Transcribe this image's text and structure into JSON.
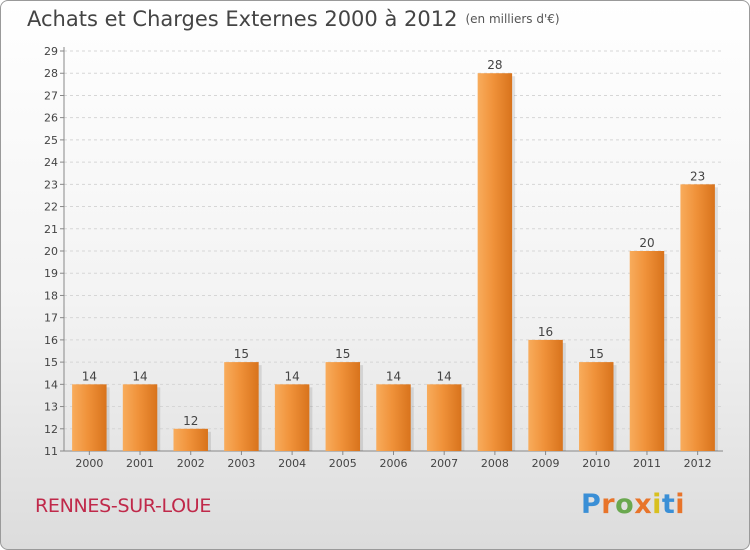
{
  "header": {
    "title": "Achats et Charges Externes 2000 à 2012",
    "unit": "(en milliers d'€)"
  },
  "footer": {
    "commune": "RENNES-SUR-LOUE",
    "logo_text": "Proxiti"
  },
  "colors": {
    "bar": "#f0923a",
    "bar_light": "#f8ac5c",
    "bar_dark": "#d8731c",
    "logo_letters": [
      "#3a8fd6",
      "#e8742a",
      "#6aa84f",
      "#e8742a",
      "#d8c020",
      "#3a8fd6",
      "#e8742a"
    ]
  },
  "chart_data": {
    "type": "bar",
    "title": "Achats et Charges Externes 2000 à 2012",
    "xlabel": "",
    "ylabel": "",
    "categories": [
      "2000",
      "2001",
      "2002",
      "2003",
      "2004",
      "2005",
      "2006",
      "2007",
      "2008",
      "2009",
      "2010",
      "2011",
      "2012"
    ],
    "values": [
      14,
      14,
      12,
      15,
      14,
      15,
      14,
      14,
      28,
      16,
      15,
      20,
      23
    ],
    "ylim": [
      11,
      29
    ],
    "yticks": [
      11,
      12,
      13,
      14,
      15,
      16,
      17,
      18,
      19,
      20,
      21,
      22,
      23,
      24,
      25,
      26,
      27,
      28,
      29
    ],
    "grid": true,
    "data_labels": true
  }
}
